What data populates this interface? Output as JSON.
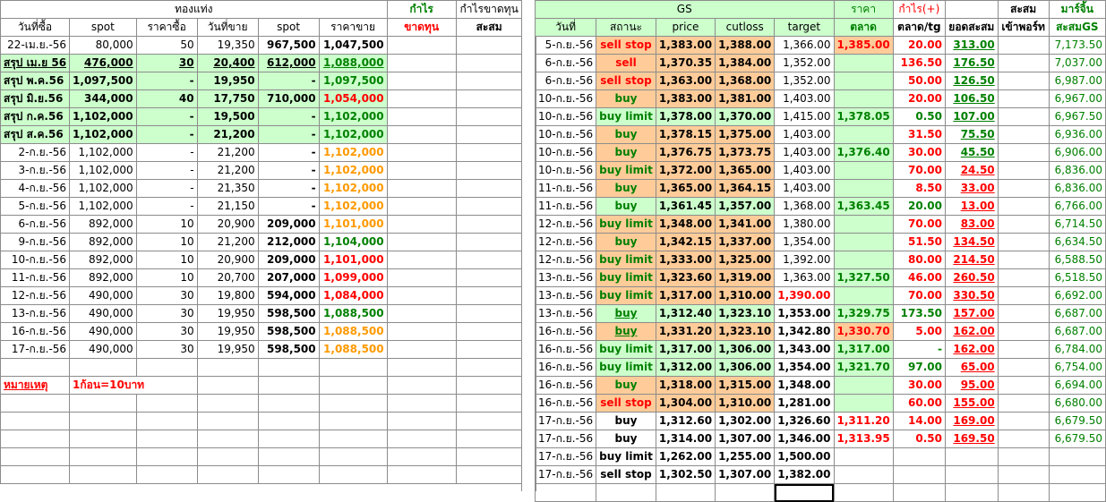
{
  "left": {
    "group_header": "ทองแท่ง",
    "profit_header": "กำไร",
    "cum_header": "กำไรขาดทุน",
    "loss_header": "ขาดทุน",
    "cum2_header": "สะสม",
    "columns": [
      "วันที่ซื้อ",
      "spot",
      "ราคาซื้อ",
      "วันที่ขาย",
      "spot",
      "ราคาขาย"
    ],
    "rows": [
      {
        "date": "22-เม.ย.-56",
        "spot": "80,000",
        "buy": "50",
        "sell_date": "19,350",
        "spot2": "967,500",
        "sell": "1,047,500",
        "style": "plain",
        "sell_color": "black"
      },
      {
        "date": "สรุป เม.ย 56",
        "spot": "476,000",
        "buy": "30",
        "sell_date": "20,400",
        "spot2": "612,000",
        "sell": "1,088,000",
        "style": "sum-u",
        "sell_color": "green"
      },
      {
        "date": "สรุป พ.ค.56",
        "spot": "1,097,500",
        "buy": "-",
        "sell_date": "19,950",
        "spot2": "-",
        "sell": "1,097,500",
        "style": "sum",
        "sell_color": "green"
      },
      {
        "date": "สรุป มิ.ย.56",
        "spot": "344,000",
        "buy": "40",
        "sell_date": "17,750",
        "spot2": "710,000",
        "sell": "1,054,000",
        "style": "sum",
        "sell_color": "red"
      },
      {
        "date": "สรุป ก.ค.56",
        "spot": "1,102,000",
        "buy": "-",
        "sell_date": "19,500",
        "spot2": "-",
        "sell": "1,102,000",
        "style": "sum",
        "sell_color": "green"
      },
      {
        "date": "สรุป ส.ค.56",
        "spot": "1,102,000",
        "buy": "-",
        "sell_date": "21,200",
        "spot2": "-",
        "sell": "1,102,000",
        "style": "sum",
        "sell_color": "green"
      },
      {
        "date": "2-ก.ย.-56",
        "spot": "1,102,000",
        "buy": "-",
        "sell_date": "21,200",
        "spot2": "-",
        "sell": "1,102,000",
        "style": "plain",
        "sell_color": "orange"
      },
      {
        "date": "3-ก.ย.-56",
        "spot": "1,102,000",
        "buy": "-",
        "sell_date": "21,200",
        "spot2": "-",
        "sell": "1,102,000",
        "style": "plain",
        "sell_color": "orange"
      },
      {
        "date": "4-ก.ย.-56",
        "spot": "1,102,000",
        "buy": "-",
        "sell_date": "21,350",
        "spot2": "-",
        "sell": "1,102,000",
        "style": "plain",
        "sell_color": "orange"
      },
      {
        "date": "5-ก.ย.-56",
        "spot": "1,102,000",
        "buy": "-",
        "sell_date": "21,150",
        "spot2": "-",
        "sell": "1,102,000",
        "style": "plain",
        "sell_color": "orange"
      },
      {
        "date": "6-ก.ย.-56",
        "spot": "892,000",
        "buy": "10",
        "sell_date": "20,900",
        "spot2": "209,000",
        "sell": "1,101,000",
        "style": "plain",
        "sell_color": "orange"
      },
      {
        "date": "9-ก.ย.-56",
        "spot": "892,000",
        "buy": "10",
        "sell_date": "21,200",
        "spot2": "212,000",
        "sell": "1,104,000",
        "style": "plain",
        "sell_color": "green"
      },
      {
        "date": "10-ก.ย.-56",
        "spot": "892,000",
        "buy": "10",
        "sell_date": "20,900",
        "spot2": "209,000",
        "sell": "1,101,000",
        "style": "plain",
        "sell_color": "red"
      },
      {
        "date": "11-ก.ย.-56",
        "spot": "892,000",
        "buy": "10",
        "sell_date": "20,700",
        "spot2": "207,000",
        "sell": "1,099,000",
        "style": "plain",
        "sell_color": "red"
      },
      {
        "date": "12-ก.ย.-56",
        "spot": "490,000",
        "buy": "30",
        "sell_date": "19,800",
        "spot2": "594,000",
        "sell": "1,084,000",
        "style": "plain",
        "sell_color": "red"
      },
      {
        "date": "13-ก.ย.-56",
        "spot": "490,000",
        "buy": "30",
        "sell_date": "19,950",
        "spot2": "598,500",
        "sell": "1,088,500",
        "style": "plain",
        "sell_color": "green"
      },
      {
        "date": "16-ก.ย.-56",
        "spot": "490,000",
        "buy": "30",
        "sell_date": "19,950",
        "spot2": "598,500",
        "sell": "1,088,500",
        "style": "plain",
        "sell_color": "orange"
      },
      {
        "date": "17-ก.ย.-56",
        "spot": "490,000",
        "buy": "30",
        "sell_date": "19,950",
        "spot2": "598,500",
        "sell": "1,088,500",
        "style": "plain",
        "sell_color": "orange"
      }
    ],
    "note_label": "หมายเหตุ",
    "note_text": "1ก้อน=10บาท"
  },
  "right": {
    "group_header": "GS",
    "price_header": "ราคา",
    "profit_header": "กำไร(+)",
    "cum_header": "สะสม",
    "margin_header": "มาร์จิ้น",
    "columns": [
      "วันที่",
      "สถานะ",
      "price",
      "cutloss",
      "target",
      "ตลาด",
      "ตลาด/tg",
      "ยอดสะสม",
      "เข้าพอร์ท",
      "สะสมGS"
    ],
    "rows": [
      {
        "date": "5-ก.ย.-56",
        "status": "sell stop",
        "price": "1,383.00",
        "cut": "1,388.00",
        "target": "1,366.00",
        "market": "1,385.00",
        "pl": "20.00",
        "cum": "313.00",
        "port": "",
        "gs": "7,173.50",
        "st": "o",
        "mk": "o",
        "plc": "red",
        "cumc": "green"
      },
      {
        "date": "6-ก.ย.-56",
        "status": "sell",
        "price": "1,370.35",
        "cut": "1,384.00",
        "target": "1,352.00",
        "market": "",
        "pl": "136.50",
        "cum": "176.50",
        "port": "",
        "gs": "7,037.00",
        "st": "o",
        "mk": "g",
        "plc": "red",
        "cumc": "green"
      },
      {
        "date": "6-ก.ย.-56",
        "status": "sell stop",
        "price": "1,363.00",
        "cut": "1,368.00",
        "target": "1,352.00",
        "market": "",
        "pl": "50.00",
        "cum": "126.50",
        "port": "",
        "gs": "6,987.00",
        "st": "o",
        "mk": "g",
        "plc": "red",
        "cumc": "green"
      },
      {
        "date": "10-ก.ย.-56",
        "status": "buy",
        "price": "1,383.00",
        "cut": "1,381.00",
        "target": "1,403.00",
        "market": "",
        "pl": "20.00",
        "cum": "106.50",
        "port": "",
        "gs": "6,967.00",
        "st": "o",
        "mk": "g",
        "plc": "red",
        "cumc": "green"
      },
      {
        "date": "10-ก.ย.-56",
        "status": "buy limit",
        "price": "1,378.00",
        "cut": "1,370.00",
        "target": "1,415.00",
        "market": "1,378.05",
        "pl": "0.50",
        "cum": "107.00",
        "port": "",
        "gs": "6,967.50",
        "st": "g",
        "mk": "g",
        "plc": "green",
        "cumc": "green"
      },
      {
        "date": "10-ก.ย.-56",
        "status": "buy",
        "price": "1,378.15",
        "cut": "1,375.00",
        "target": "1,403.00",
        "market": "",
        "pl": "31.50",
        "cum": "75.50",
        "port": "",
        "gs": "6,936.00",
        "st": "o",
        "mk": "g",
        "plc": "red",
        "cumc": "green"
      },
      {
        "date": "10-ก.ย.-56",
        "status": "buy",
        "price": "1,376.75",
        "cut": "1,373.75",
        "target": "1,403.00",
        "market": "1,376.40",
        "pl": "30.00",
        "cum": "45.50",
        "port": "",
        "gs": "6,906.00",
        "st": "o",
        "mk": "g",
        "plc": "red",
        "cumc": "green"
      },
      {
        "date": "10-ก.ย.-56",
        "status": "buy limit",
        "price": "1,372.00",
        "cut": "1,365.00",
        "target": "1,403.00",
        "market": "",
        "pl": "70.00",
        "cum": "24.50",
        "port": "",
        "gs": "6,836.00",
        "st": "o",
        "mk": "g",
        "plc": "red",
        "cumc": "red"
      },
      {
        "date": "11-ก.ย.-56",
        "status": "buy",
        "price": "1,365.00",
        "cut": "1,364.15",
        "target": "1,403.00",
        "market": "",
        "pl": "8.50",
        "cum": "33.00",
        "port": "",
        "gs": "6,836.00",
        "st": "o",
        "mk": "g",
        "plc": "red",
        "cumc": "red"
      },
      {
        "date": "11-ก.ย.-56",
        "status": "buy",
        "price": "1,361.45",
        "cut": "1,357.00",
        "target": "1,368.00",
        "market": "1,363.45",
        "pl": "20.00",
        "cum": "13.00",
        "port": "",
        "gs": "6,766.00",
        "st": "g",
        "mk": "g",
        "plc": "green",
        "cumc": "red"
      },
      {
        "date": "12-ก.ย.-56",
        "status": "buy limit",
        "price": "1,348.00",
        "cut": "1,341.00",
        "target": "1,380.00",
        "market": "",
        "pl": "70.00",
        "cum": "83.00",
        "port": "",
        "gs": "6,714.50",
        "st": "o",
        "mk": "g",
        "plc": "red",
        "cumc": "red"
      },
      {
        "date": "12-ก.ย.-56",
        "status": "buy",
        "price": "1,342.15",
        "cut": "1,337.00",
        "target": "1,354.00",
        "market": "",
        "pl": "51.50",
        "cum": "134.50",
        "port": "",
        "gs": "6,634.50",
        "st": "o",
        "mk": "g",
        "plc": "red",
        "cumc": "red"
      },
      {
        "date": "12-ก.ย.-56",
        "status": "buy limit",
        "price": "1,333.00",
        "cut": "1,325.00",
        "target": "1,392.00",
        "market": "",
        "pl": "80.00",
        "cum": "214.50",
        "port": "",
        "gs": "6,588.50",
        "st": "o",
        "mk": "g",
        "plc": "red",
        "cumc": "red"
      },
      {
        "date": "13-ก.ย.-56",
        "status": "buy limit",
        "price": "1,323.60",
        "cut": "1,319.00",
        "target": "1,363.00",
        "market": "1,327.50",
        "pl": "46.00",
        "cum": "260.50",
        "port": "",
        "gs": "6,518.50",
        "st": "o",
        "mk": "g",
        "plc": "red",
        "cumc": "red"
      },
      {
        "date": "13-ก.ย.-56",
        "status": "buy limit",
        "price": "1,317.00",
        "cut": "1,310.00",
        "target": "1,390.00",
        "market": "",
        "pl": "70.00",
        "cum": "330.50",
        "port": "",
        "gs": "6,692.00",
        "st": "o",
        "mk": "g",
        "plc": "red",
        "cumc": "red"
      },
      {
        "date": "13-ก.ย.-56",
        "status": "buy",
        "price": "1,312.40",
        "cut": "1,323.10",
        "target": "1,353.00",
        "market": "1,329.75",
        "pl": "173.50",
        "cum": "157.00",
        "port": "",
        "gs": "6,687.00",
        "st": "g",
        "mk": "g",
        "plc": "green",
        "cumc": "red"
      },
      {
        "date": "16-ก.ย.-56",
        "status": "buy",
        "price": "1,331.20",
        "cut": "1,323.10",
        "target": "1,342.80",
        "market": "1,330.70",
        "pl": "5.00",
        "cum": "162.00",
        "port": "",
        "gs": "6,687.00",
        "st": "o",
        "mk": "o",
        "plc": "red",
        "cumc": "red"
      },
      {
        "date": "16-ก.ย.-56",
        "status": "buy limit",
        "price": "1,317.00",
        "cut": "1,306.00",
        "target": "1,343.00",
        "market": "1,317.00",
        "pl": "-",
        "cum": "162.00",
        "port": "",
        "gs": "6,784.00",
        "st": "g",
        "mk": "g",
        "plc": "green",
        "cumc": "red"
      },
      {
        "date": "16-ก.ย.-56",
        "status": "buy limit",
        "price": "1,312.00",
        "cut": "1,306.00",
        "target": "1,354.00",
        "market": "1,321.70",
        "pl": "97.00",
        "cum": "65.00",
        "port": "",
        "gs": "6,754.00",
        "st": "g",
        "mk": "g",
        "plc": "green",
        "cumc": "red"
      },
      {
        "date": "16-ก.ย.-56",
        "status": "buy",
        "price": "1,318.00",
        "cut": "1,315.00",
        "target": "1,348.00",
        "market": "",
        "pl": "30.00",
        "cum": "95.00",
        "port": "",
        "gs": "6,694.00",
        "st": "o",
        "mk": "g",
        "plc": "red",
        "cumc": "red"
      },
      {
        "date": "16-ก.ย.-56",
        "status": "sell stop",
        "price": "1,304.00",
        "cut": "1,310.00",
        "target": "1,281.00",
        "market": "",
        "pl": "60.00",
        "cum": "155.00",
        "port": "",
        "gs": "6,680.00",
        "st": "o",
        "mk": "g",
        "plc": "red",
        "cumc": "red"
      },
      {
        "date": "17-ก.ย.-56",
        "status": "buy",
        "price": "1,312.60",
        "cut": "1,302.00",
        "target": "1,326.60",
        "market": "1,311.20",
        "pl": "14.00",
        "cum": "169.00",
        "port": "",
        "gs": "6,679.50",
        "st": "w",
        "mk": "w",
        "plc": "red",
        "cumc": "red"
      },
      {
        "date": "17-ก.ย.-56",
        "status": "buy",
        "price": "1,314.00",
        "cut": "1,307.00",
        "target": "1,346.00",
        "market": "1,313.95",
        "pl": "0.50",
        "cum": "169.50",
        "port": "",
        "gs": "6,679.50",
        "st": "w",
        "mk": "w",
        "plc": "red",
        "cumc": "red"
      },
      {
        "date": "17-ก.ย.-56",
        "status": "buy limit",
        "price": "1,262.00",
        "cut": "1,255.00",
        "target": "1,500.00",
        "market": "",
        "pl": "",
        "cum": "",
        "port": "",
        "gs": "",
        "st": "w",
        "mk": "w",
        "plc": "red",
        "cumc": "red"
      },
      {
        "date": "17-ก.ย.-56",
        "status": "sell stop",
        "price": "1,302.50",
        "cut": "1,307.00",
        "target": "1,382.00",
        "market": "",
        "pl": "",
        "cum": "",
        "port": "",
        "gs": "",
        "st": "w",
        "mk": "w",
        "plc": "red",
        "cumc": "red"
      }
    ]
  },
  "colors": {
    "green_fill": "#ccffcc",
    "orange_fill": "#ffcc99",
    "red": "#ff0000",
    "green": "#008000",
    "orange": "#ff9900"
  }
}
